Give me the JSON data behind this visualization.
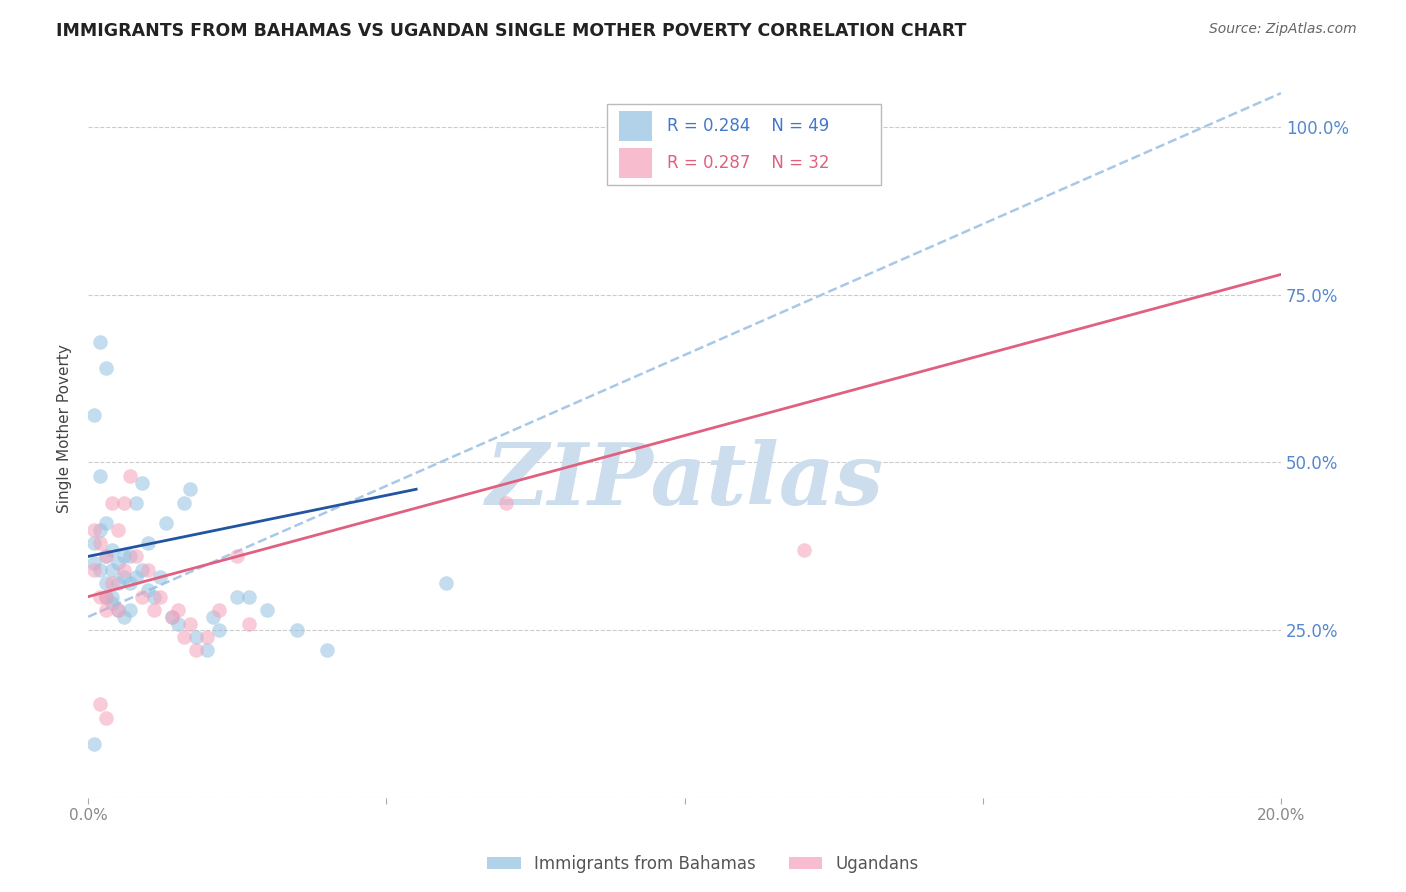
{
  "title": "IMMIGRANTS FROM BAHAMAS VS UGANDAN SINGLE MOTHER POVERTY CORRELATION CHART",
  "source": "Source: ZipAtlas.com",
  "ylabel_label": "Single Mother Poverty",
  "legend_R_blue": "R = 0.284",
  "legend_N_blue": "N = 49",
  "legend_R_pink": "R = 0.287",
  "legend_N_pink": "N = 32",
  "legend_blue_label": "Immigrants from Bahamas",
  "legend_pink_label": "Ugandans",
  "blue_color": "#92c0e0",
  "pink_color": "#f5a0b8",
  "reg_line_blue_color": "#2255a0",
  "reg_line_pink_color": "#e06080",
  "dashed_line_color": "#a8c8e8",
  "watermark_color": "#ccdded",
  "watermark_text": "ZIPatlas",
  "xlim": [
    0.0,
    0.2
  ],
  "ylim": [
    0.0,
    1.1
  ],
  "x_ticks": [
    0.0,
    0.05,
    0.1,
    0.15,
    0.2
  ],
  "y_ticks": [
    0.0,
    0.25,
    0.5,
    0.75,
    1.0
  ],
  "y_right_labels": [
    "",
    "25.0%",
    "50.0%",
    "75.0%",
    "100.0%"
  ],
  "blue_points_x": [
    0.001,
    0.001,
    0.002,
    0.002,
    0.002,
    0.003,
    0.003,
    0.003,
    0.003,
    0.004,
    0.004,
    0.004,
    0.004,
    0.005,
    0.005,
    0.005,
    0.006,
    0.006,
    0.006,
    0.007,
    0.007,
    0.007,
    0.008,
    0.008,
    0.009,
    0.009,
    0.01,
    0.01,
    0.011,
    0.012,
    0.013,
    0.014,
    0.015,
    0.016,
    0.017,
    0.018,
    0.02,
    0.021,
    0.022,
    0.025,
    0.027,
    0.03,
    0.035,
    0.04,
    0.003,
    0.002,
    0.001,
    0.001,
    0.06
  ],
  "blue_points_y": [
    0.38,
    0.35,
    0.34,
    0.4,
    0.48,
    0.32,
    0.36,
    0.41,
    0.3,
    0.34,
    0.37,
    0.3,
    0.29,
    0.35,
    0.32,
    0.28,
    0.36,
    0.33,
    0.27,
    0.36,
    0.32,
    0.28,
    0.44,
    0.33,
    0.47,
    0.34,
    0.38,
    0.31,
    0.3,
    0.33,
    0.41,
    0.27,
    0.26,
    0.44,
    0.46,
    0.24,
    0.22,
    0.27,
    0.25,
    0.3,
    0.3,
    0.28,
    0.25,
    0.22,
    0.64,
    0.68,
    0.57,
    0.08,
    0.32
  ],
  "pink_points_x": [
    0.001,
    0.001,
    0.002,
    0.002,
    0.003,
    0.003,
    0.003,
    0.004,
    0.004,
    0.005,
    0.005,
    0.006,
    0.006,
    0.007,
    0.008,
    0.009,
    0.01,
    0.011,
    0.012,
    0.014,
    0.015,
    0.016,
    0.017,
    0.018,
    0.02,
    0.022,
    0.025,
    0.027,
    0.07,
    0.12,
    0.002,
    0.003
  ],
  "pink_points_y": [
    0.4,
    0.34,
    0.38,
    0.3,
    0.36,
    0.3,
    0.28,
    0.44,
    0.32,
    0.4,
    0.28,
    0.44,
    0.34,
    0.48,
    0.36,
    0.3,
    0.34,
    0.28,
    0.3,
    0.27,
    0.28,
    0.24,
    0.26,
    0.22,
    0.24,
    0.28,
    0.36,
    0.26,
    0.44,
    0.37,
    0.14,
    0.12
  ],
  "blue_trendline_x": [
    0.0,
    0.2
  ],
  "blue_trendline_y": [
    0.27,
    1.05
  ],
  "pink_trendline_x": [
    0.0,
    0.2
  ],
  "pink_trendline_y": [
    0.3,
    0.78
  ],
  "blue_regline_x": [
    0.0,
    0.055
  ],
  "blue_regline_y": [
    0.36,
    0.46
  ],
  "pink_regline_x_start": 0.0,
  "pink_regline_x_end": 0.2
}
